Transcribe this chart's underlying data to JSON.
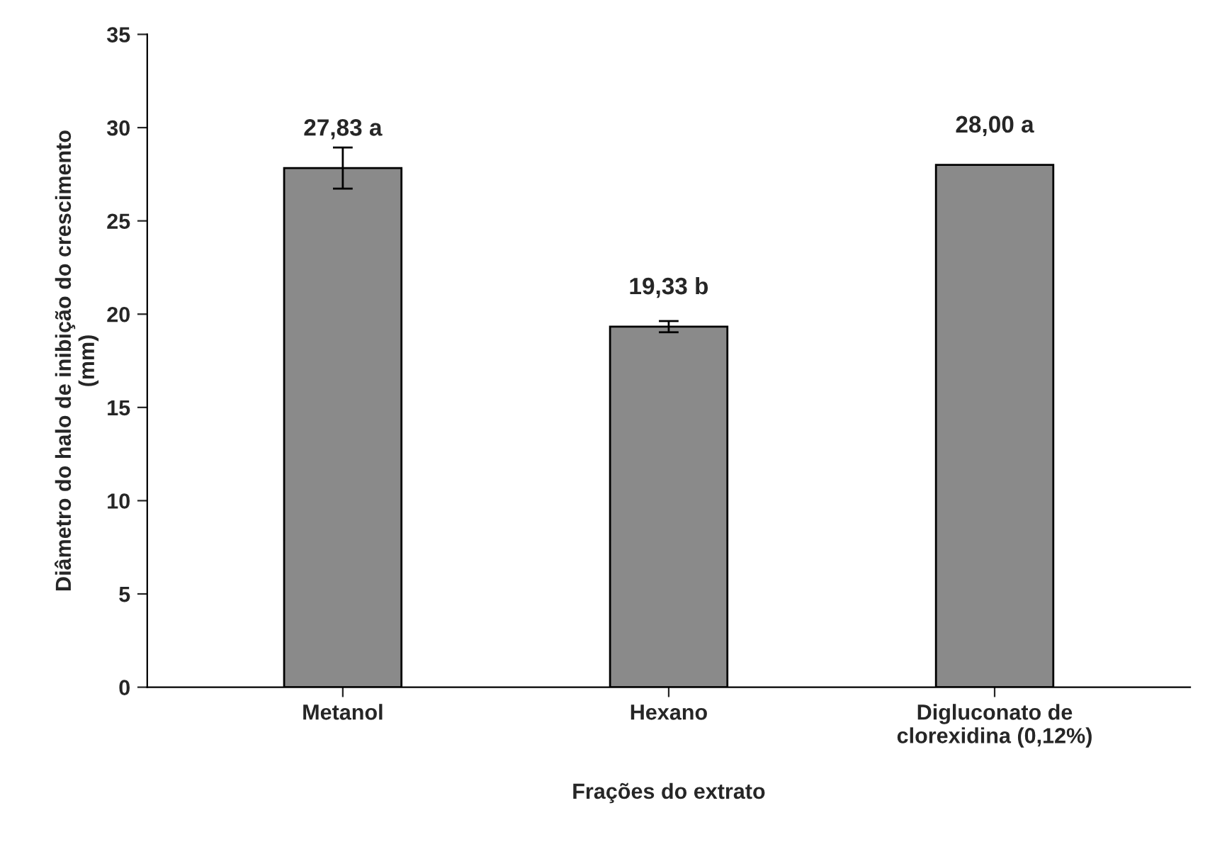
{
  "chart_data": {
    "type": "bar",
    "xlabel": "Frações do extrato",
    "ylabel": "Diâmetro do halo de inibição do crescimento\n(mm)",
    "categories": [
      "Metanol",
      "Hexano",
      "Digluconato de\nclorexidina (0,12%)"
    ],
    "values": [
      27.83,
      19.33,
      28.0
    ],
    "errors": [
      1.1,
      0.3,
      null
    ],
    "value_labels": [
      "27,83 a",
      "19,33 b",
      "28,00 a"
    ],
    "color": "#8a8a8a",
    "ylim": [
      0,
      35
    ],
    "yticks": [
      0,
      5,
      10,
      15,
      20,
      25,
      30,
      35
    ],
    "grid": false,
    "legend": false
  }
}
